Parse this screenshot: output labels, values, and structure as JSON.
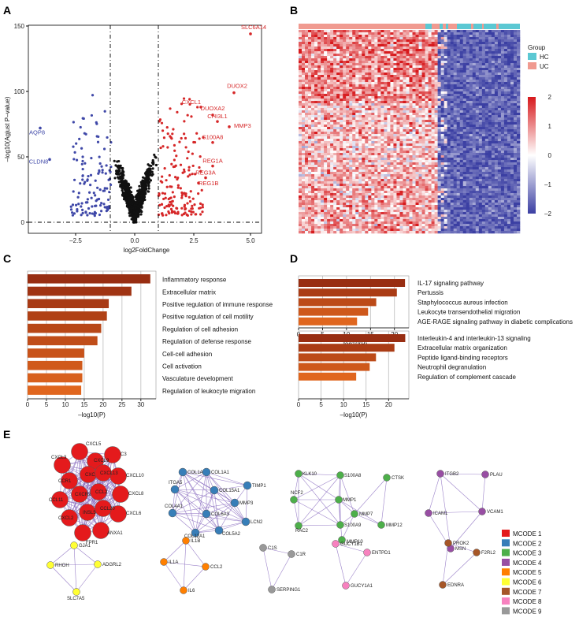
{
  "panels": {
    "a": "A",
    "b": "B",
    "c": "C",
    "d": "D",
    "e": "E"
  },
  "volcano": {
    "xlabel": "log2FoldChange",
    "ylabel": "–log10(Agjust P–value)",
    "x_ticks": [
      "–2.5",
      "0.0",
      "2.5",
      "5.0"
    ],
    "y_ticks": [
      "0",
      "50",
      "100",
      "150"
    ],
    "colors": {
      "up": "#d62728",
      "down": "#3f48a8",
      "ns": "#111111"
    },
    "up_labels": [
      "SLC6A14",
      "DUOX2",
      "CXCL1",
      "DUOXA2",
      "CHI3L1",
      "MMP3",
      "S100A8",
      "REG1A",
      "REG3A",
      "REG1B"
    ],
    "down_labels": [
      "AQP8",
      "CLDN8"
    ]
  },
  "heatmap": {
    "group_title": "Group",
    "groups": [
      {
        "name": "HC",
        "color": "#5bc8d3"
      },
      {
        "name": "UC",
        "color": "#f09a90"
      }
    ],
    "scale_ticks": [
      "2",
      "1",
      "0",
      "–1",
      "–2"
    ]
  },
  "chart_data": [
    {
      "type": "bar",
      "title": "",
      "xlabel": "–log10(P)",
      "x_ticks": [
        "0",
        "5",
        "10",
        "15",
        "20",
        "25",
        "30"
      ],
      "xlim": [
        0,
        34
      ],
      "categories": [
        "Inflammatory response",
        "Extracellular matrix",
        "Positive regulation of immune response",
        "Positive regulation of cell motility",
        "Regulation of cell adhesion",
        "Regulation of defense response",
        "Cell-cell adhesion",
        "Cell activation",
        "Vasculature development",
        "Regulation of leukocyte migration"
      ],
      "values": [
        32.5,
        27.5,
        21.5,
        21,
        19.5,
        18.5,
        15,
        14.5,
        14.5,
        14.2
      ]
    },
    {
      "type": "bar",
      "title": "",
      "xlabel": "–log10(P)",
      "x_ticks": [
        "0",
        "5",
        "10",
        "15",
        "20"
      ],
      "xlim": [
        0,
        23
      ],
      "categories": [
        "IL-17 signaling pathway",
        "Pertussis",
        "Staphylococcus aureus infection",
        "Leukocyte transendothelial migration",
        "AGE-RAGE signaling pathway in diabetic complications"
      ],
      "values": [
        22.2,
        20.5,
        16.2,
        14.5,
        12.2
      ]
    },
    {
      "type": "bar",
      "title": "",
      "xlabel": "–log10(P)",
      "x_ticks": [
        "0",
        "5",
        "10",
        "15",
        "20"
      ],
      "xlim": [
        0,
        24.5
      ],
      "categories": [
        "Interleukin-4 and interleukin-13 signaling",
        "Extracellular matrix organization",
        "Peptide ligand-binding receptors",
        "Neutrophil degranulation",
        "Regulation of complement cascade"
      ],
      "values": [
        23.7,
        21.3,
        17.2,
        15.8,
        12.8
      ]
    }
  ],
  "network": {
    "legend": [
      {
        "label": "MCODE 1",
        "color": "#e41a1c"
      },
      {
        "label": "MCODE 2",
        "color": "#377eb8"
      },
      {
        "label": "MCODE 3",
        "color": "#4daf4a"
      },
      {
        "label": "MCODE 4",
        "color": "#984ea3"
      },
      {
        "label": "MCODE 5",
        "color": "#ff7f00"
      },
      {
        "label": "MCODE 6",
        "color": "#ffff33"
      },
      {
        "label": "MCODE 7",
        "color": "#a65628"
      },
      {
        "label": "MCODE 8",
        "color": "#f781bf"
      },
      {
        "label": "MCODE 9",
        "color": "#999999"
      }
    ],
    "clusters": [
      {
        "color": "#e41a1c",
        "big": true,
        "labels": [
          "CXCL5",
          "C3",
          "CXCL3",
          "CXCL9",
          "CXCL10",
          "CCR1",
          "CXCL1",
          "CXCL13",
          "CXCL8",
          "CCL11",
          "CXCR2",
          "CCL2",
          "CXCL6",
          "CXCL2",
          "INSL5",
          "CCL20",
          "ANXA1",
          "FPR1"
        ]
      },
      {
        "color": "#377eb8",
        "labels": [
          "COL1A2",
          "COL1A1",
          "TIMP1",
          "ITGA5",
          "COL15A1",
          "MMP3",
          "COL4A1",
          "COL6A3",
          "LCN2",
          "COL12A1",
          "COL5A2"
        ]
      },
      {
        "color": "#4daf4a",
        "labels": [
          "KLK10",
          "S100A8",
          "CTSK",
          "NCF2",
          "MMP1",
          "MMP7",
          "RAC2",
          "S100A9",
          "MMP12",
          "MMP10"
        ]
      },
      {
        "color": "#984ea3",
        "labels": [
          "ITGB2",
          "PLAU",
          "ICAM1",
          "VCAM1",
          "MSN"
        ]
      },
      {
        "color": "#ffff33",
        "labels": [
          "GJA1",
          "RHOH",
          "ADGRL2",
          "SLC7A5"
        ]
      },
      {
        "color": "#ff7f00",
        "labels": [
          "IL1B",
          "IL1A",
          "CCL2",
          "IL6"
        ]
      },
      {
        "color": "#999999",
        "labels": [
          "C1S",
          "C1R",
          "SERPING1"
        ]
      },
      {
        "color": "#f781bf",
        "labels": [
          "GUCY1B1",
          "ENTPD1",
          "GUCY1A1"
        ]
      },
      {
        "color": "#a65628",
        "labels": [
          "PROK2",
          "F2RL2",
          "EDNRA"
        ]
      }
    ]
  }
}
